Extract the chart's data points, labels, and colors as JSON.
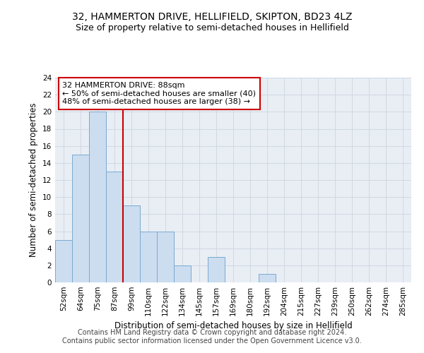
{
  "title": "32, HAMMERTON DRIVE, HELLIFIELD, SKIPTON, BD23 4LZ",
  "subtitle": "Size of property relative to semi-detached houses in Hellifield",
  "xlabel": "Distribution of semi-detached houses by size in Hellifield",
  "ylabel": "Number of semi-detached properties",
  "categories": [
    "52sqm",
    "64sqm",
    "75sqm",
    "87sqm",
    "99sqm",
    "110sqm",
    "122sqm",
    "134sqm",
    "145sqm",
    "157sqm",
    "169sqm",
    "180sqm",
    "192sqm",
    "204sqm",
    "215sqm",
    "227sqm",
    "239sqm",
    "250sqm",
    "262sqm",
    "274sqm",
    "285sqm"
  ],
  "values": [
    5,
    15,
    20,
    13,
    9,
    6,
    6,
    2,
    0,
    3,
    0,
    0,
    1,
    0,
    0,
    0,
    0,
    0,
    0,
    0,
    0
  ],
  "bar_color": "#ccddf0",
  "bar_edge_color": "#7aaacf",
  "highlight_line_color": "#cc0000",
  "annotation_text": "32 HAMMERTON DRIVE: 88sqm\n← 50% of semi-detached houses are smaller (40)\n48% of semi-detached houses are larger (38) →",
  "annotation_box_color": "#ffffff",
  "annotation_box_edge_color": "#cc0000",
  "ylim": [
    0,
    24
  ],
  "yticks": [
    0,
    2,
    4,
    6,
    8,
    10,
    12,
    14,
    16,
    18,
    20,
    22,
    24
  ],
  "footer_line1": "Contains HM Land Registry data © Crown copyright and database right 2024.",
  "footer_line2": "Contains public sector information licensed under the Open Government Licence v3.0.",
  "grid_color": "#d0d8e4",
  "background_color": "#e8eef4",
  "title_fontsize": 10,
  "subtitle_fontsize": 9,
  "axis_label_fontsize": 8.5,
  "tick_fontsize": 7.5,
  "footer_fontsize": 7
}
